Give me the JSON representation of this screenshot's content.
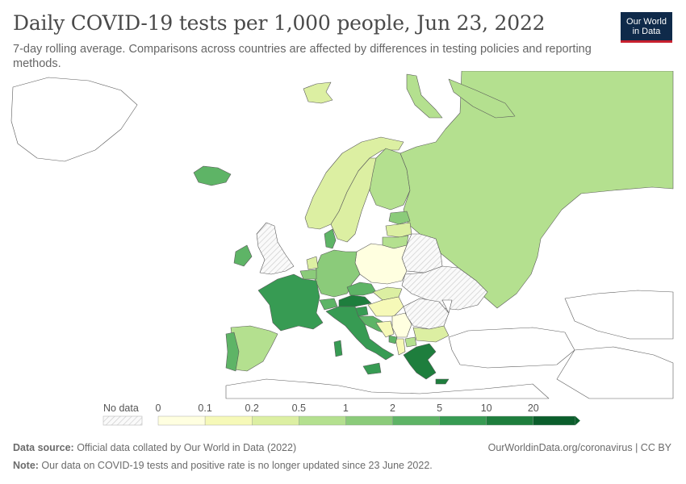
{
  "header": {
    "title": "Daily COVID-19 tests per 1,000 people, Jun 23, 2022",
    "subtitle": "7-day rolling average. Comparisons across countries are affected by differences in testing policies and reporting methods."
  },
  "logo": {
    "line1": "Our World",
    "line2": "in Data"
  },
  "colors": {
    "no_data_fill": "#ffffff",
    "border": "#5a5a5a",
    "bins": [
      "#ffffe0",
      "#f6f9b8",
      "#dcefa2",
      "#b4e08f",
      "#8bcb7a",
      "#5eb466",
      "#379b53",
      "#1e7e3d",
      "#0b5e2c"
    ]
  },
  "legend": {
    "no_data_label": "No data",
    "tick_labels": [
      "0",
      "0.1",
      "0.2",
      "0.5",
      "1",
      "2",
      "5",
      "10",
      "20"
    ]
  },
  "footer": {
    "source_label": "Data source:",
    "source_text": " Official data collated by Our World in Data (2022)",
    "credit": "OurWorldinData.org/coronavirus | CC BY",
    "note_label": "Note:",
    "note_text": " Our data on COVID-19 tests and positive rate is no longer updated since 23 June 2022."
  }
}
